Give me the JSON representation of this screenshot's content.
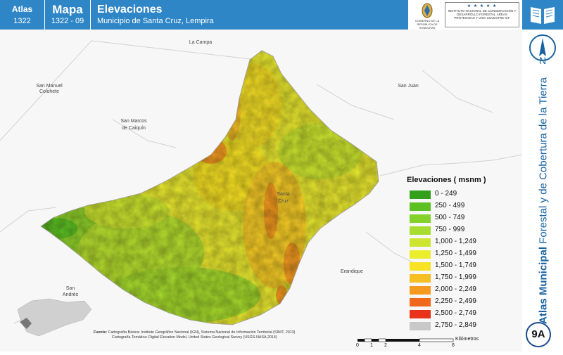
{
  "header": {
    "atlas_label": "Atlas",
    "atlas_number": "1322",
    "map_label": "Mapa",
    "map_number": "1322 - 09",
    "title": "Elevaciones",
    "subtitle": "Municipio de Santa Cruz, Lempira",
    "logo_left_text": "GOBIERNO DE LA REPÚBLICA DE HONDURAS",
    "logo_right_text": "INSTITUTO NACIONAL DE CONSERVACIÓN Y DESARROLLO FORESTAL ÁREAS PROTEGIDAS Y VIDA SILVESTRE ICF"
  },
  "sidebar": {
    "north_label": "N",
    "vertical_title_bold": "Atlas Municipal",
    "vertical_title_rest": " Forestal y de Cobertura de la Tierra",
    "badge": "9A"
  },
  "places": {
    "la_campa": "La Campa",
    "san_manuel": "San Manuel",
    "colohete": "Colohete",
    "san_marcos": "San Marcos",
    "de_caiquin": "de Caiquín",
    "san_juan": "San Juan",
    "santa": "Santa",
    "cruz": "Cruz",
    "erandique": "Erandique",
    "san_andres_1": "San",
    "san_andres_2": "Andrés"
  },
  "legend": {
    "title": "Elevaciones ( msnm )",
    "items": [
      {
        "label": "0 - 249",
        "color": "#33a01c"
      },
      {
        "label": "250 - 499",
        "color": "#5cbf22"
      },
      {
        "label": "500 - 749",
        "color": "#84d12a"
      },
      {
        "label": "750 - 999",
        "color": "#a8dc2e"
      },
      {
        "label": "1,000 - 1,249",
        "color": "#cde52f"
      },
      {
        "label": "1,250 - 1,499",
        "color": "#ebee2c"
      },
      {
        "label": "1,500 - 1,749",
        "color": "#f7e223"
      },
      {
        "label": "1,750 - 1,999",
        "color": "#f6bf24"
      },
      {
        "label": "2,000 - 2,249",
        "color": "#f39a1f"
      },
      {
        "label": "2,250 - 2,499",
        "color": "#f0681b"
      },
      {
        "label": "2,500 - 2,749",
        "color": "#e8321a"
      },
      {
        "label": "2,750 - 2,849",
        "color": "#c8c8c8"
      }
    ]
  },
  "source": {
    "label": "Fuente:",
    "line1": "Cartografía Básica: Instituto Geográfico Nacional (IGN), Sistema Nacional de Información Territorial (SINIT, 2013)",
    "line2": "Cartografía Temática: Digital Elevation Model, United States Geological Survey (USGS-NASA,2014)"
  },
  "scale": {
    "ticks": [
      "0",
      "1",
      "2",
      "4",
      "6"
    ],
    "unit": "Kilómetros"
  }
}
